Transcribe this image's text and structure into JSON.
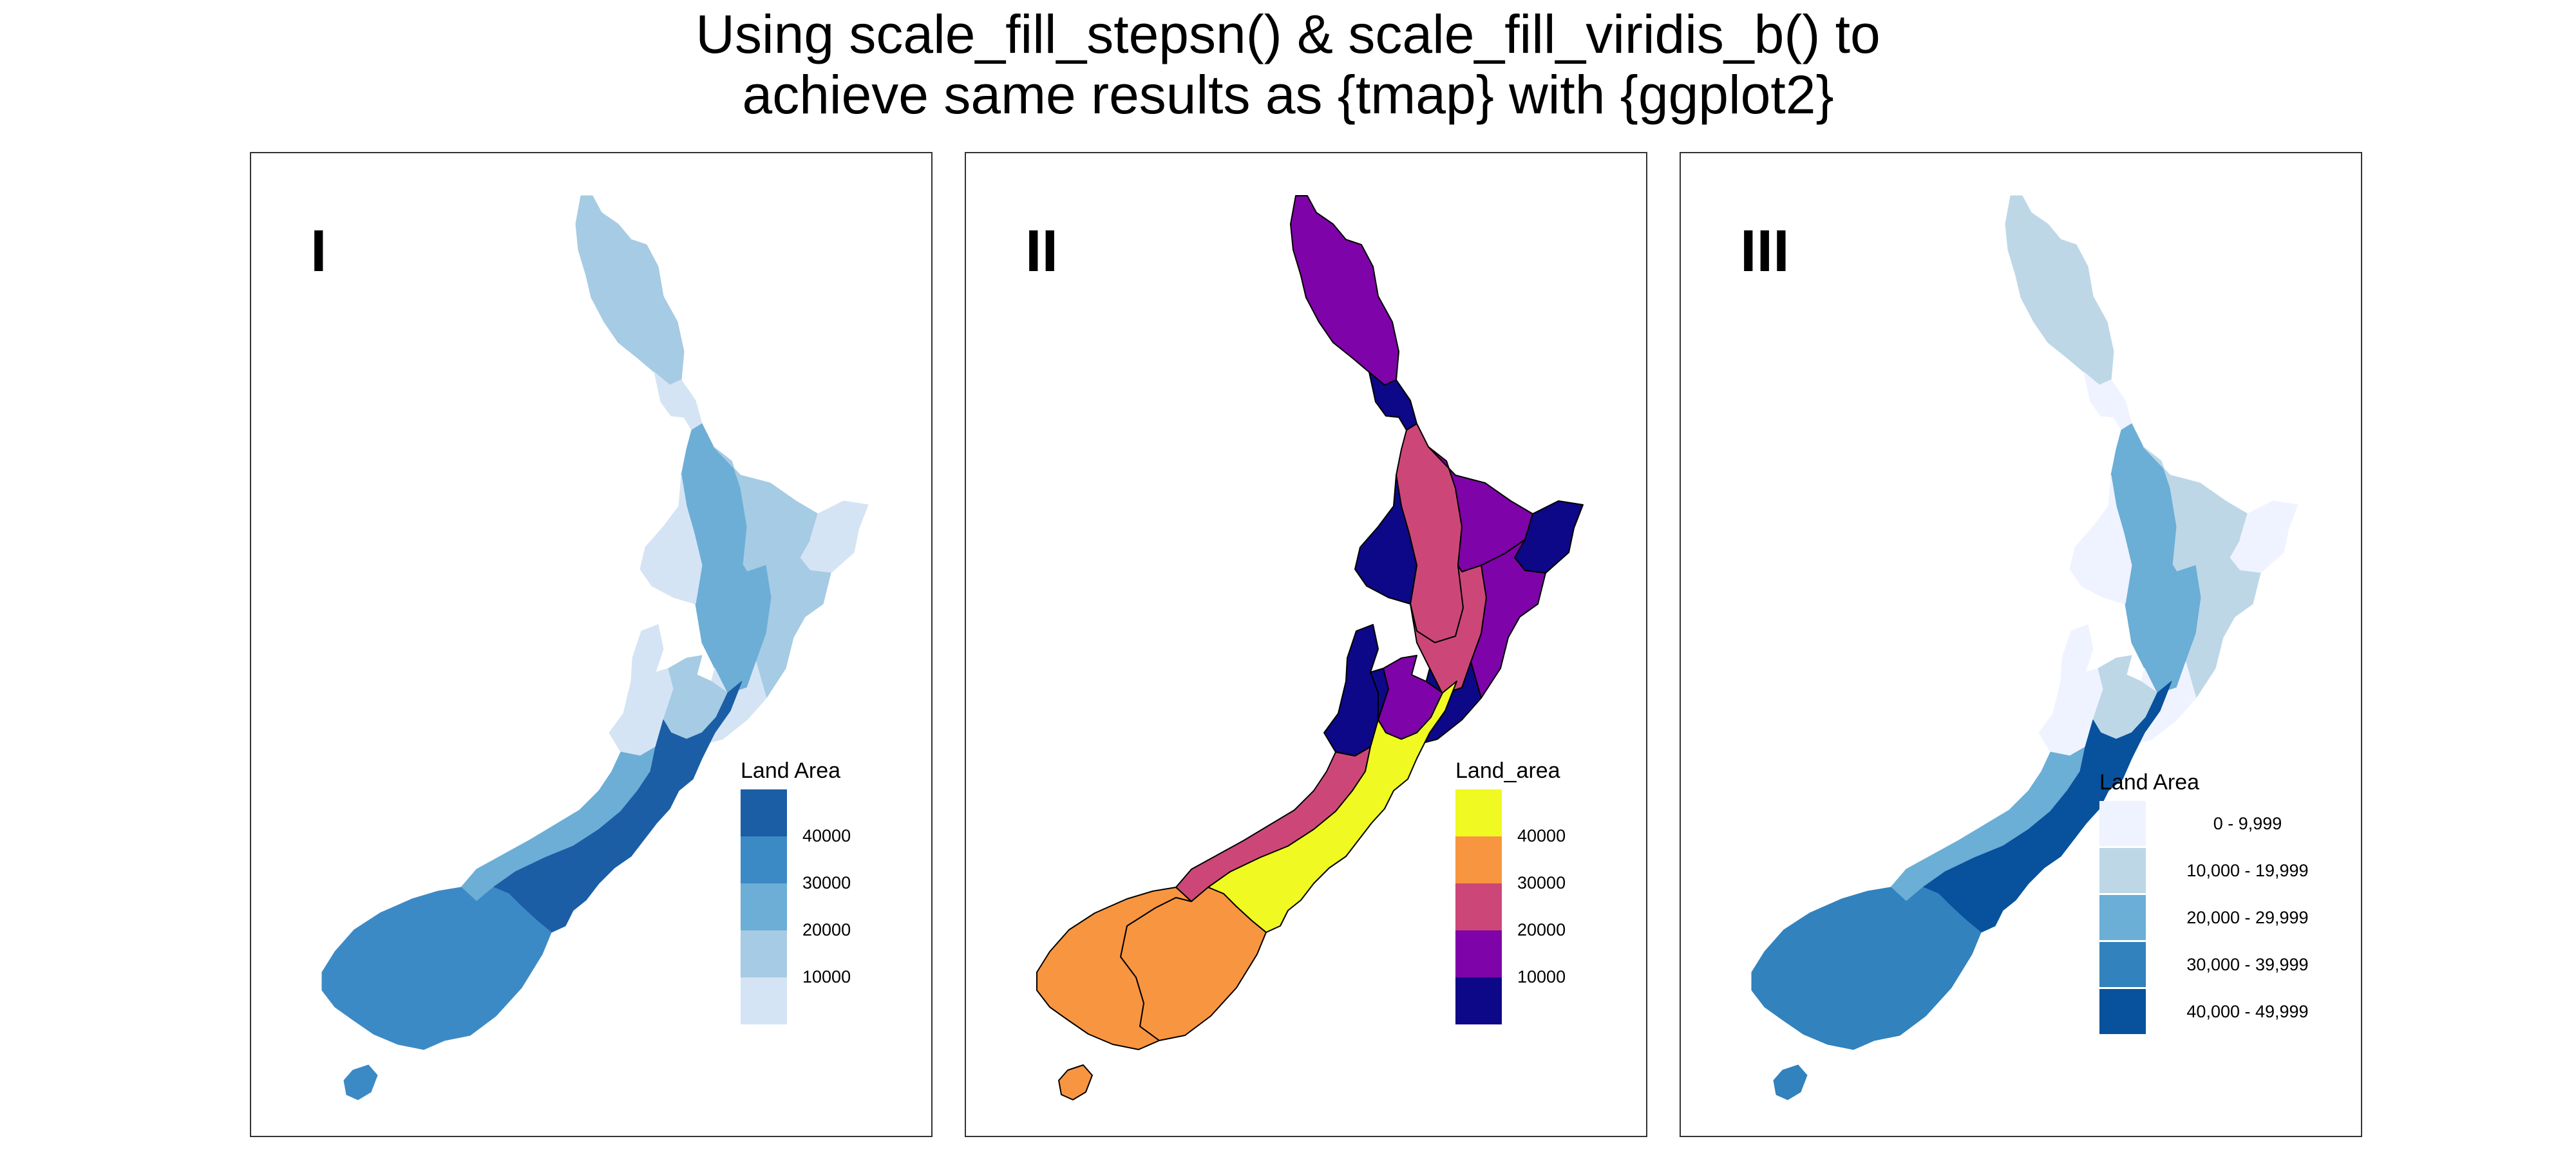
{
  "title": {
    "line1": "Using scale_fill_stepsn() & scale_fill_viridis_b() to",
    "line2": "achieve same results as {tmap} with {ggplot2}"
  },
  "panels": [
    {
      "tag": "I",
      "legend": {
        "title": "Land Area",
        "bins": [
          "#d5e4f4",
          "#a6cbe4",
          "#6caed6",
          "#3c8ac5",
          "#1b5ea6"
        ],
        "labels": [
          "10000",
          "20000",
          "30000",
          "40000"
        ]
      },
      "colors": {
        "northland": "#a6cbe4",
        "auckland": "#d5e4f4",
        "waikato": "#6caed6",
        "bay_of_plenty": "#a6cbe4",
        "gisborne": "#d5e4f4",
        "taranaki": "#d5e4f4",
        "manawatu_wanganui": "#6caed6",
        "hawkes_bay": "#a6cbe4",
        "wellington": "#d5e4f4",
        "tasman": "#d5e4f4",
        "nelson": "#d5e4f4",
        "marlborough": "#a6cbe4",
        "west_coast": "#6caed6",
        "canterbury": "#1b5ea6",
        "otago": "#3c8ac5",
        "southland": "#3c8ac5",
        "stewart": "#3c8ac5"
      }
    },
    {
      "tag": "II",
      "legend": {
        "title": "Land_area",
        "bins": [
          "#0d0887",
          "#7e03a8",
          "#cc4778",
          "#f89540",
          "#f0f921"
        ],
        "labels": [
          "10000",
          "20000",
          "30000",
          "40000"
        ]
      },
      "colors": {
        "northland": "#7e03a8",
        "auckland": "#0d0887",
        "waikato": "#cc4778",
        "bay_of_plenty": "#7e03a8",
        "gisborne": "#0d0887",
        "taranaki": "#0d0887",
        "manawatu_wanganui": "#cc4778",
        "hawkes_bay": "#7e03a8",
        "wellington": "#0d0887",
        "tasman": "#0d0887",
        "nelson": "#0d0887",
        "marlborough": "#7e03a8",
        "west_coast": "#cc4778",
        "canterbury": "#f0f921",
        "otago": "#f89540",
        "southland": "#f89540",
        "stewart": "#f89540"
      }
    },
    {
      "tag": "III",
      "legend": {
        "title": "Land Area",
        "bins": [
          "#eff3ff",
          "#bdd7e7",
          "#6baed6",
          "#3182bd",
          "#08519c"
        ],
        "labels": [
          "0 -  9,999",
          "10,000 - 19,999",
          "20,000 - 29,999",
          "30,000 - 39,999",
          "40,000 - 49,999"
        ]
      },
      "colors": {
        "northland": "#bdd7e7",
        "auckland": "#eff3ff",
        "waikato": "#6baed6",
        "bay_of_plenty": "#bdd7e7",
        "gisborne": "#eff3ff",
        "taranaki": "#eff3ff",
        "manawatu_wanganui": "#6baed6",
        "hawkes_bay": "#bdd7e7",
        "wellington": "#eff3ff",
        "tasman": "#eff3ff",
        "nelson": "#eff3ff",
        "marlborough": "#bdd7e7",
        "west_coast": "#6baed6",
        "canterbury": "#08519c",
        "otago": "#3182bd",
        "southland": "#3182bd",
        "stewart": "#3182bd"
      }
    }
  ]
}
